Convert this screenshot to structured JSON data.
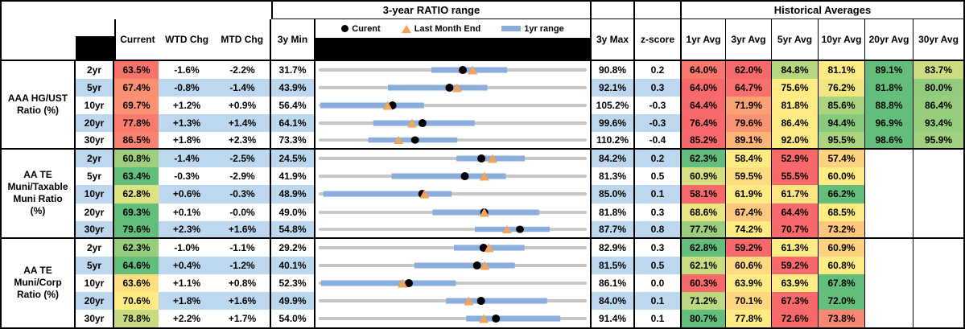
{
  "header": {
    "chart_section_title": "3-year RATIO range",
    "historical_title": "Historical Averages",
    "col_current": "Current",
    "col_wtd": "WTD Chg",
    "col_mtd": "MTD Chg",
    "col_min": "3y Min",
    "col_max": "3y Max",
    "col_z": "z-score",
    "avg_cols": [
      "1yr Avg",
      "3yr Avg",
      "5yr Avg",
      "10yr Avg",
      "20yr Avg",
      "30yr Avg"
    ],
    "legend": {
      "current": "Curent",
      "lme": "Last Month End",
      "range": "1yr range"
    }
  },
  "colors": {
    "band_blue": "#BDD7EE",
    "heat_red": "#F8696B",
    "heat_mid": "#FFEB84",
    "heat_green": "#63BE7B",
    "bar_blue": "#8AADDC",
    "range_gray": "#C6C6C6",
    "triangle_orange": "#F2A45C",
    "dot_black": "#000000"
  },
  "chart_data": {
    "type": "table",
    "title": "3-year RATIO range",
    "range_chart_notes": {
      "axis": "each row spans 3y Min to 3y Max",
      "bar": "1yr range (blue)",
      "dot": "Current (black circle)",
      "triangle": "Last Month End (orange)"
    },
    "groups": [
      {
        "label": "AAA HG/UST\nRatio (%)",
        "rows": [
          {
            "tenor": "2yr",
            "current": 63.5,
            "wtd": "-1.6%",
            "mtd": "-2.2%",
            "min3y": 31.7,
            "max3y": 90.8,
            "zscore": "0.2",
            "avgs": [
              64.0,
              62.0,
              84.8,
              81.1,
              89.1,
              83.7
            ],
            "range_1yr": [
              56.5,
              73.4
            ],
            "last_month_end": 65.7
          },
          {
            "tenor": "5yr",
            "current": 67.4,
            "wtd": "-0.8%",
            "mtd": "-1.4%",
            "min3y": 43.9,
            "max3y": 92.1,
            "zscore": "0.3",
            "avgs": [
              64.0,
              64.7,
              75.6,
              76.2,
              81.8,
              80.0
            ],
            "range_1yr": [
              56.2,
              74.3
            ],
            "last_month_end": 68.8
          },
          {
            "tenor": "10yr",
            "current": 69.7,
            "wtd": "+1.2%",
            "mtd": "+0.9%",
            "min3y": 56.4,
            "max3y": 105.2,
            "zscore": "-0.3",
            "avgs": [
              64.4,
              71.9,
              81.8,
              85.6,
              88.8,
              86.4
            ],
            "range_1yr": [
              56.4,
              75.5
            ],
            "last_month_end": 68.8
          },
          {
            "tenor": "20yr",
            "current": 77.8,
            "wtd": "+1.3%",
            "mtd": "+1.4%",
            "min3y": 64.1,
            "max3y": 99.6,
            "zscore": "-0.3",
            "avgs": [
              76.4,
              79.6,
              86.4,
              94.4,
              96.9,
              93.4
            ],
            "range_1yr": [
              71.2,
              84.8
            ],
            "last_month_end": 76.4
          },
          {
            "tenor": "30yr",
            "current": 86.5,
            "wtd": "+1.8%",
            "mtd": "+2.3%",
            "min3y": 73.3,
            "max3y": 110.2,
            "zscore": "-0.4",
            "avgs": [
              85.2,
              89.1,
              92.0,
              95.5,
              98.6,
              95.9
            ],
            "range_1yr": [
              80.0,
              92.4
            ],
            "last_month_end": 84.2
          }
        ]
      },
      {
        "label": "AA TE\nMuni/Taxable\nMuni Ratio\n(%)",
        "rows": [
          {
            "tenor": "2yr",
            "current": 60.8,
            "wtd": "-1.4%",
            "mtd": "-2.5%",
            "min3y": 24.5,
            "max3y": 84.2,
            "zscore": "0.2",
            "avgs": [
              62.3,
              58.4,
              52.9,
              57.4,
              null,
              null
            ],
            "range_1yr": [
              55.2,
              70.6
            ],
            "last_month_end": 63.3
          },
          {
            "tenor": "5yr",
            "current": 63.4,
            "wtd": "-0.3%",
            "mtd": "-2.9%",
            "min3y": 41.9,
            "max3y": 81.3,
            "zscore": "0.5",
            "avgs": [
              60.9,
              59.5,
              55.5,
              60.0,
              null,
              null
            ],
            "range_1yr": [
              52.5,
              69.5
            ],
            "last_month_end": 66.3
          },
          {
            "tenor": "10yr",
            "current": 62.8,
            "wtd": "+0.6%",
            "mtd": "-0.3%",
            "min3y": 48.9,
            "max3y": 85.0,
            "zscore": "0.1",
            "avgs": [
              58.1,
              61.9,
              61.7,
              66.2,
              null,
              null
            ],
            "range_1yr": [
              49.3,
              66.8
            ],
            "last_month_end": 63.1
          },
          {
            "tenor": "20yr",
            "current": 69.3,
            "wtd": "+0.1%",
            "mtd": "-0.0%",
            "min3y": 49.0,
            "max3y": 81.8,
            "zscore": "0.3",
            "avgs": [
              68.6,
              67.4,
              64.4,
              68.5,
              null,
              null
            ],
            "range_1yr": [
              62.9,
              76.1
            ],
            "last_month_end": 69.3
          },
          {
            "tenor": "30yr",
            "current": 79.6,
            "wtd": "+2.3%",
            "mtd": "+1.6%",
            "min3y": 54.8,
            "max3y": 87.7,
            "zscore": "0.8",
            "avgs": [
              77.7,
              74.2,
              70.7,
              73.2,
              null,
              null
            ],
            "range_1yr": [
              74.0,
              83.3
            ],
            "last_month_end": 78.0
          }
        ]
      },
      {
        "label": "AA TE\nMuni/Corp\nRatio (%)",
        "rows": [
          {
            "tenor": "2yr",
            "current": 62.3,
            "wtd": "-1.0%",
            "mtd": "-1.1%",
            "min3y": 29.2,
            "max3y": 82.9,
            "zscore": "0.3",
            "avgs": [
              62.8,
              59.2,
              61.3,
              60.9,
              null,
              null
            ],
            "range_1yr": [
              56.3,
              70.6
            ],
            "last_month_end": 63.4
          },
          {
            "tenor": "5yr",
            "current": 64.6,
            "wtd": "+0.4%",
            "mtd": "-1.2%",
            "min3y": 40.1,
            "max3y": 81.5,
            "zscore": "0.5",
            "avgs": [
              62.1,
              60.6,
              59.2,
              60.8,
              null,
              null
            ],
            "range_1yr": [
              54.8,
              70.5
            ],
            "last_month_end": 65.8
          },
          {
            "tenor": "10yr",
            "current": 63.6,
            "wtd": "+1.1%",
            "mtd": "+0.8%",
            "min3y": 52.3,
            "max3y": 86.1,
            "zscore": "0.0",
            "avgs": [
              60.3,
              63.9,
              63.9,
              67.8,
              null,
              null
            ],
            "range_1yr": [
              52.4,
              69.6
            ],
            "last_month_end": 62.8
          },
          {
            "tenor": "20yr",
            "current": 70.6,
            "wtd": "+1.8%",
            "mtd": "+1.6%",
            "min3y": 49.9,
            "max3y": 84.0,
            "zscore": "0.1",
            "avgs": [
              71.2,
              70.1,
              67.3,
              72.0,
              null,
              null
            ],
            "range_1yr": [
              66.1,
              79.1
            ],
            "last_month_end": 69.0
          },
          {
            "tenor": "30yr",
            "current": 78.8,
            "wtd": "+2.2%",
            "mtd": "+1.7%",
            "min3y": 54.0,
            "max3y": 91.4,
            "zscore": "0.1",
            "avgs": [
              80.7,
              77.8,
              72.6,
              73.8,
              null,
              null
            ],
            "range_1yr": [
              74.6,
              87.9
            ],
            "last_month_end": 77.1
          }
        ]
      }
    ]
  }
}
